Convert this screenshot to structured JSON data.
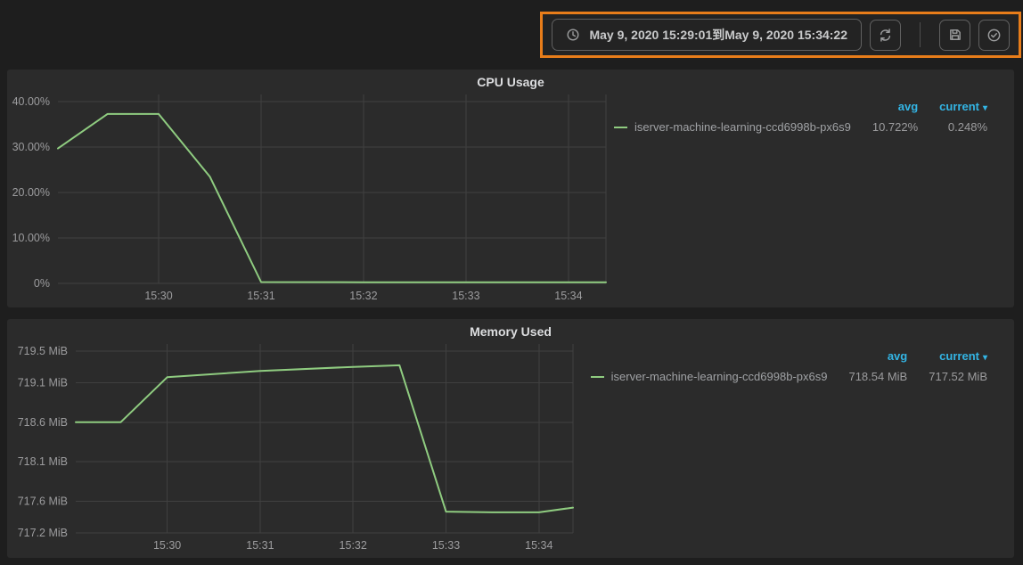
{
  "colors": {
    "accent_orange": "#e87d1a",
    "legend_link_blue": "#33b5e5",
    "series_green": "#8fcc80",
    "panel_background": "#2b2b2b",
    "page_background": "#1e1e1e"
  },
  "icons": {
    "clock": "clock-icon",
    "refresh": "refresh-icon",
    "save": "save-icon",
    "apply": "check-circle-icon",
    "sort_caret": "▾"
  },
  "toolbar": {
    "time_range_label": "May 9, 2020 15:29:01到May 9, 2020 15:34:22"
  },
  "chart_data": [
    {
      "type": "line",
      "title": "CPU Usage",
      "x_start": "15:29:01",
      "x_end": "15:34:22",
      "xticks": [
        {
          "t": "15:30:00",
          "label": "15:30"
        },
        {
          "t": "15:31:00",
          "label": "15:31"
        },
        {
          "t": "15:32:00",
          "label": "15:32"
        },
        {
          "t": "15:33:00",
          "label": "15:33"
        },
        {
          "t": "15:34:00",
          "label": "15:34"
        }
      ],
      "yticks": [
        {
          "v": 40,
          "label": "40.00%"
        },
        {
          "v": 30,
          "label": "30.00%"
        },
        {
          "v": 20,
          "label": "20.00%"
        },
        {
          "v": 10,
          "label": "10.00%"
        },
        {
          "v": 0,
          "label": "0%"
        }
      ],
      "ylim": [
        0,
        41.6
      ],
      "grid": true,
      "legend_position": "right",
      "line_color": "#8fcc80",
      "series": [
        {
          "name": "iserver-machine-learning-ccd6998b-px6s9",
          "points": [
            [
              "15:29:01",
              29.7
            ],
            [
              "15:29:30",
              37.3
            ],
            [
              "15:30:00",
              37.3
            ],
            [
              "15:30:30",
              23.5
            ],
            [
              "15:31:00",
              0.3
            ],
            [
              "15:32:00",
              0.26
            ],
            [
              "15:33:00",
              0.25
            ],
            [
              "15:34:00",
              0.25
            ],
            [
              "15:34:22",
              0.248
            ]
          ]
        }
      ],
      "legend": {
        "avg_label": "avg",
        "current_label": "current",
        "rows": [
          {
            "name": "iserver-machine-learning-ccd6998b-px6s9",
            "avg": "10.722%",
            "current": "0.248%"
          }
        ]
      }
    },
    {
      "type": "line",
      "title": "Memory Used",
      "x_start": "15:29:01",
      "x_end": "15:34:22",
      "xticks": [
        {
          "t": "15:30:00",
          "label": "15:30"
        },
        {
          "t": "15:31:00",
          "label": "15:31"
        },
        {
          "t": "15:32:00",
          "label": "15:32"
        },
        {
          "t": "15:33:00",
          "label": "15:33"
        },
        {
          "t": "15:34:00",
          "label": "15:34"
        }
      ],
      "yticks": [
        {
          "v": 719.5,
          "label": "719.5 MiB"
        },
        {
          "v": 719.1,
          "label": "719.1 MiB"
        },
        {
          "v": 718.6,
          "label": "718.6 MiB"
        },
        {
          "v": 718.1,
          "label": "718.1 MiB"
        },
        {
          "v": 717.6,
          "label": "717.6 MiB"
        },
        {
          "v": 717.2,
          "label": "717.2 MiB"
        }
      ],
      "ylim": [
        717.2,
        719.59
      ],
      "grid": true,
      "legend_position": "right",
      "line_color": "#8fcc80",
      "series": [
        {
          "name": "iserver-machine-learning-ccd6998b-px6s9",
          "points": [
            [
              "15:29:01",
              718.6
            ],
            [
              "15:29:30",
              718.6
            ],
            [
              "15:30:00",
              719.17
            ],
            [
              "15:31:00",
              719.25
            ],
            [
              "15:32:00",
              719.3
            ],
            [
              "15:32:30",
              719.32
            ],
            [
              "15:33:00",
              717.47
            ],
            [
              "15:33:30",
              717.46
            ],
            [
              "15:34:00",
              717.46
            ],
            [
              "15:34:22",
              717.52
            ]
          ]
        }
      ],
      "legend": {
        "avg_label": "avg",
        "current_label": "current",
        "rows": [
          {
            "name": "iserver-machine-learning-ccd6998b-px6s9",
            "avg": "718.54 MiB",
            "current": "717.52 MiB"
          }
        ]
      }
    }
  ]
}
